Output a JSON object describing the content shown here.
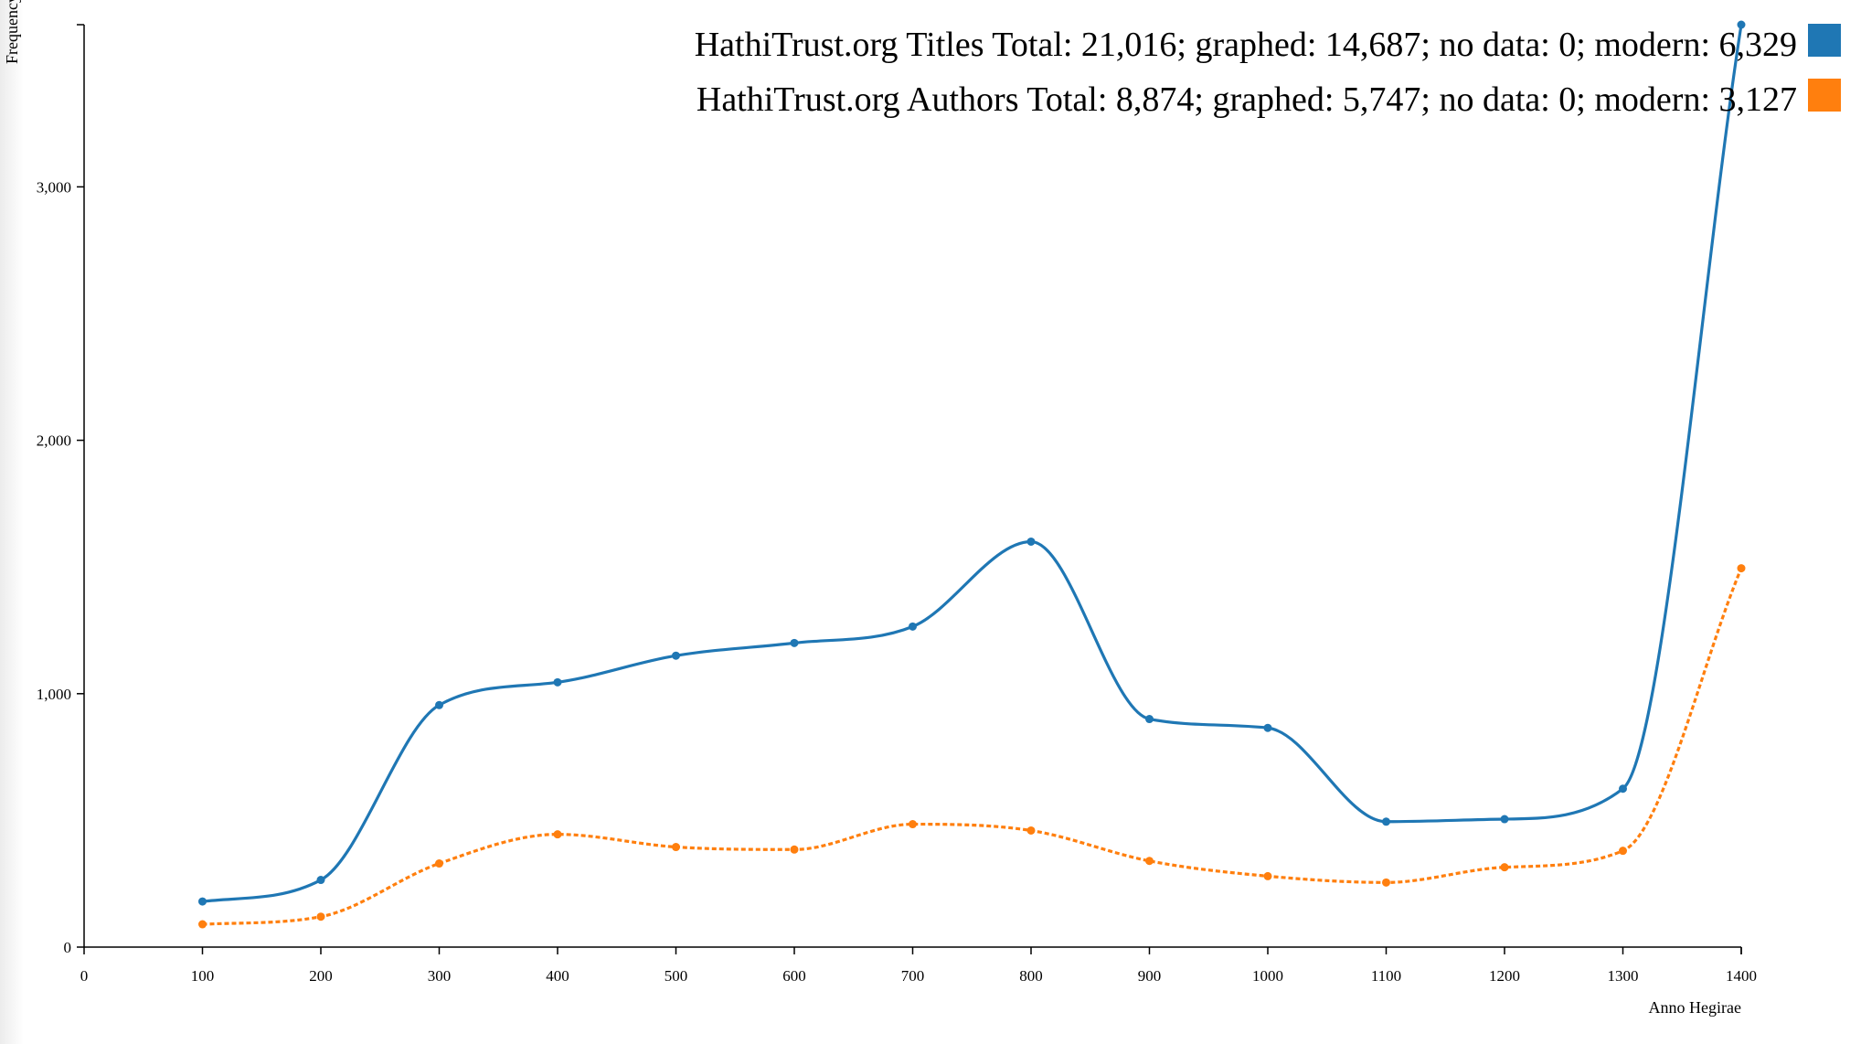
{
  "chart_data": {
    "type": "line",
    "xlabel": "Anno Hegirae",
    "ylabel": "Frequency",
    "xlim": [
      0,
      1400
    ],
    "ylim": [
      0,
      3640
    ],
    "x_ticks": [
      "0",
      "100",
      "200",
      "300",
      "400",
      "500",
      "600",
      "700",
      "800",
      "900",
      "1000",
      "1100",
      "1200",
      "1300",
      "1400"
    ],
    "y_ticks": [
      "0",
      "1,000",
      "2,000",
      "3,000"
    ],
    "grid": false,
    "legend_position": "top-right",
    "x": [
      100,
      200,
      300,
      400,
      500,
      600,
      700,
      800,
      900,
      1000,
      1100,
      1200,
      1300,
      1400
    ],
    "series": [
      {
        "name": "HathiTrust.org Titles Total: 21,016; graphed: 14,687; no data: 0; modern: 6,329",
        "color": "#1f77b4",
        "dashed": false,
        "values": [
          180,
          265,
          955,
          1045,
          1150,
          1200,
          1265,
          1600,
          900,
          865,
          495,
          505,
          625,
          3640
        ]
      },
      {
        "name": "HathiTrust.org Authors Total: 8,874; graphed: 5,747; no data: 0; modern: 3,127",
        "color": "#ff7f0e",
        "dashed": true,
        "values": [
          90,
          120,
          330,
          445,
          395,
          385,
          485,
          460,
          340,
          280,
          255,
          315,
          380,
          1495
        ]
      }
    ]
  }
}
